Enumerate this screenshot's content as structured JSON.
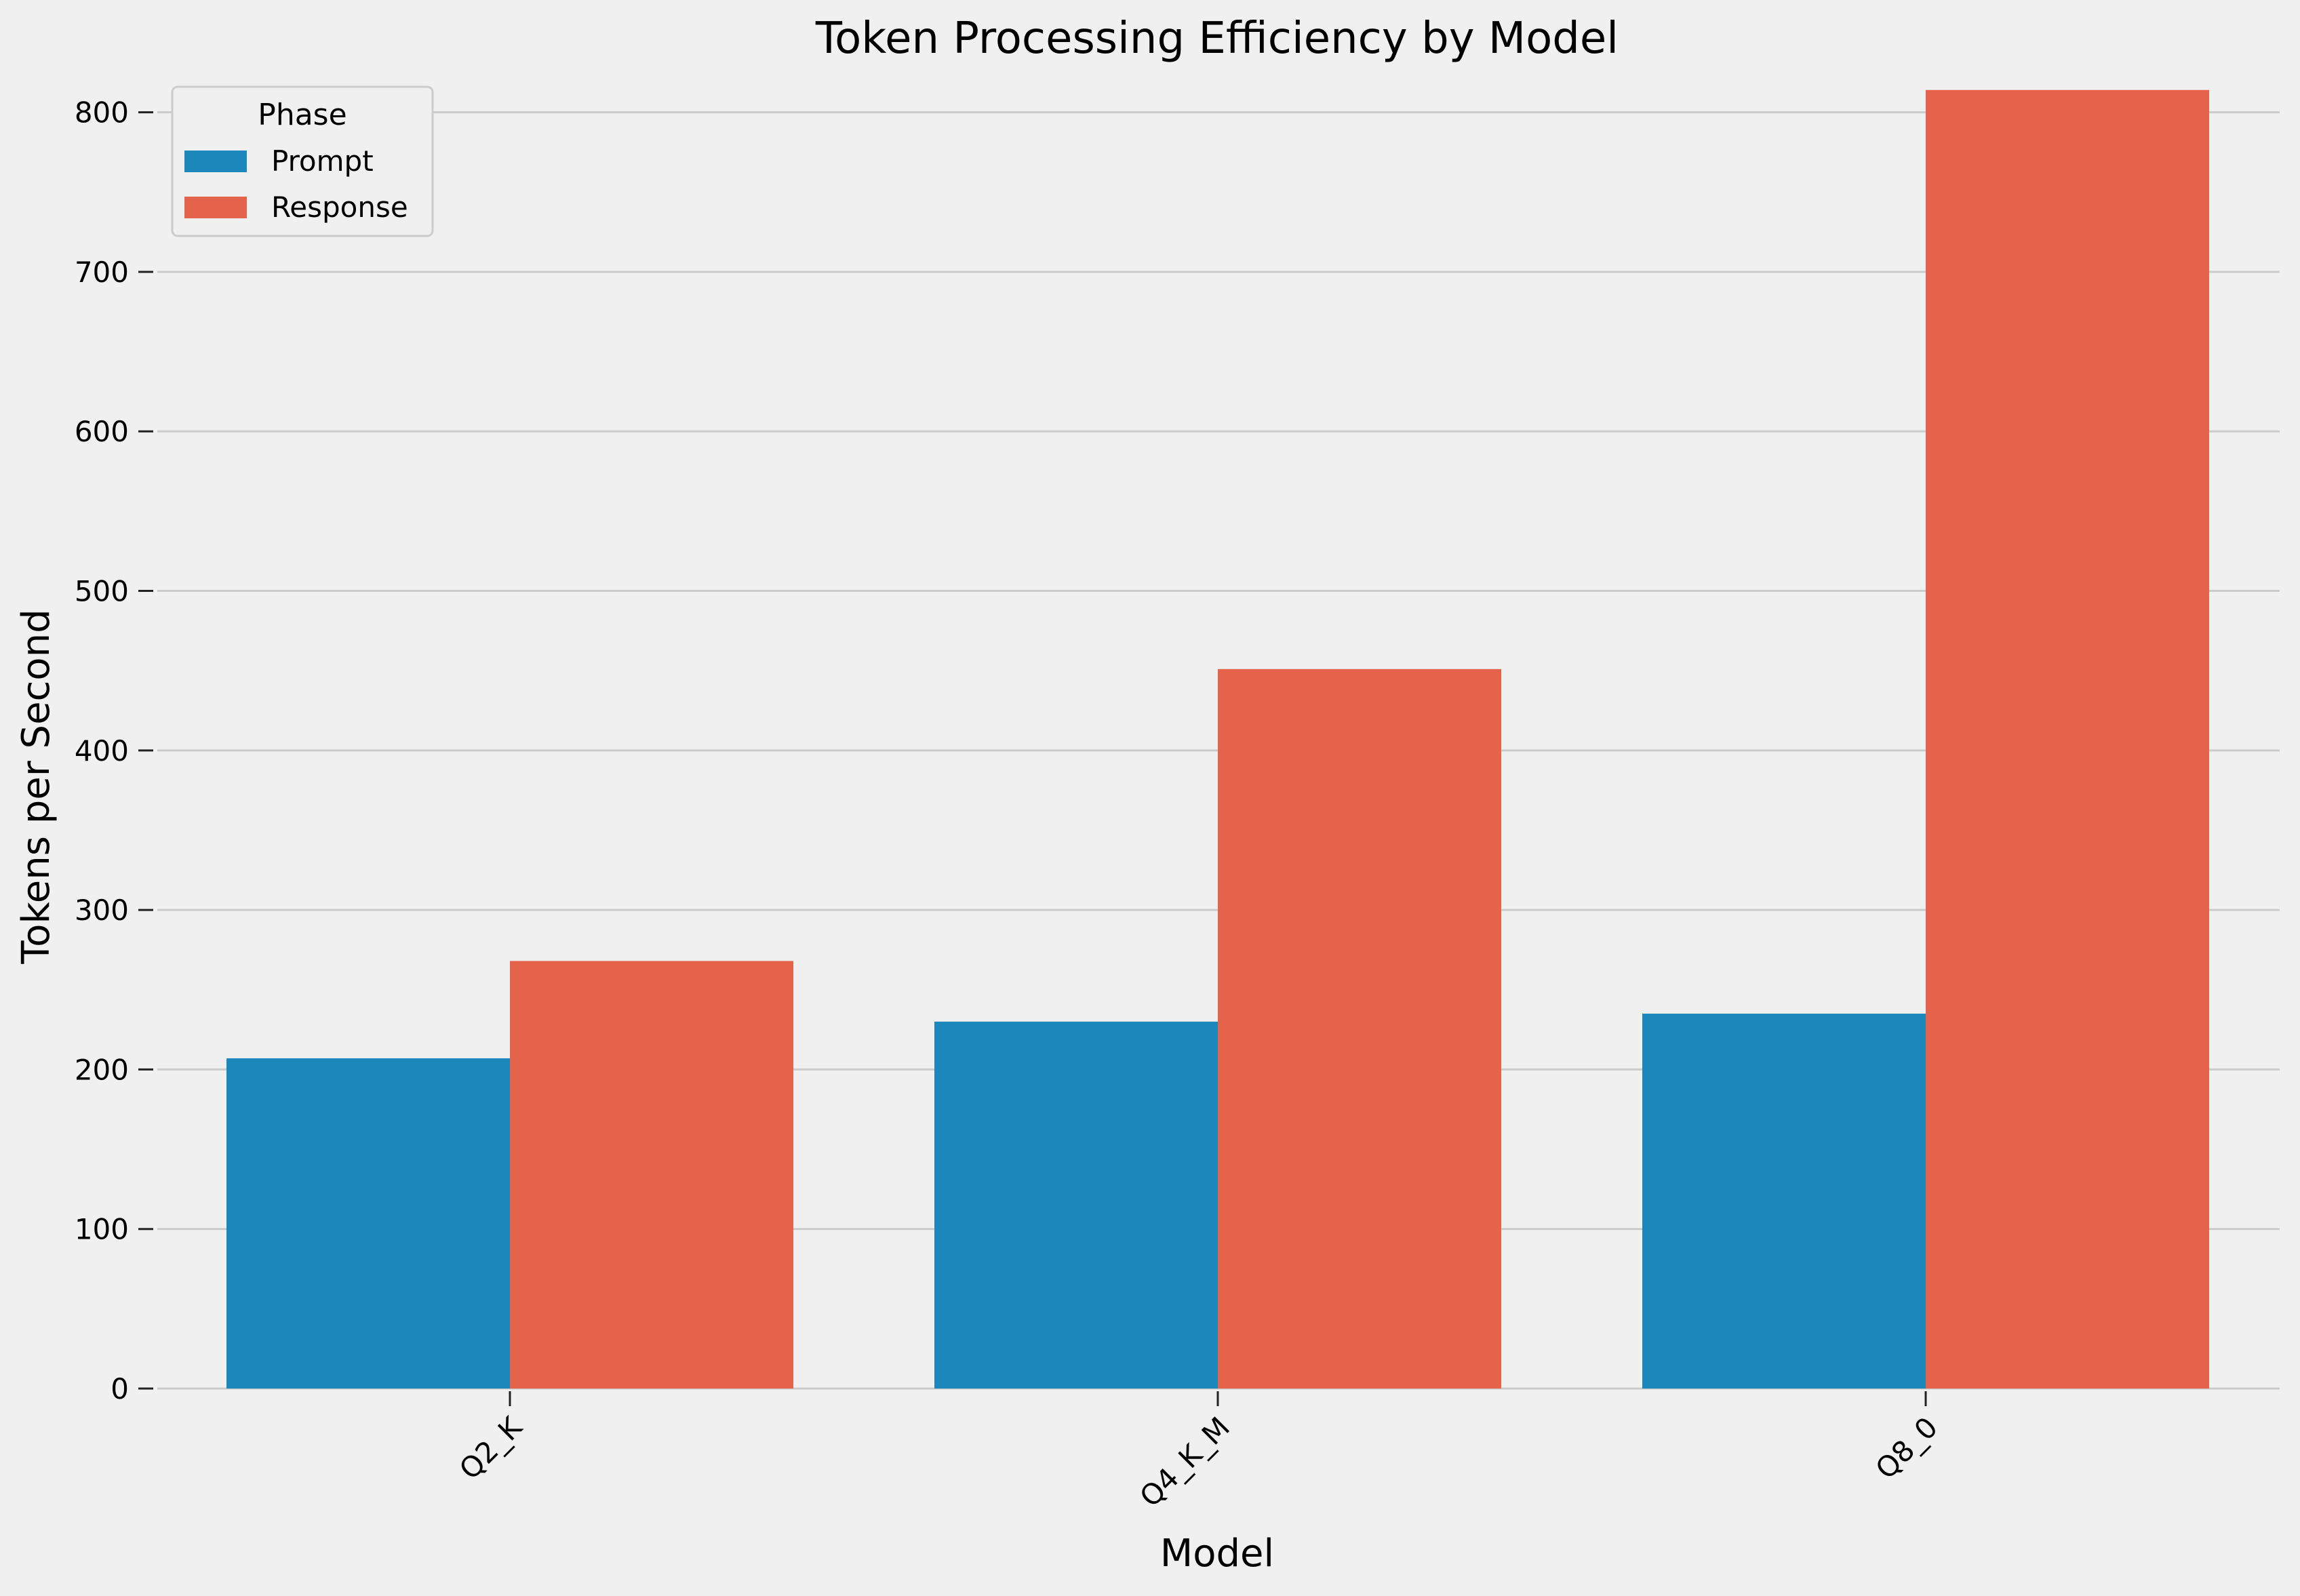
{
  "chart_data": {
    "type": "bar",
    "title": "Token Processing Efficiency by Model",
    "xlabel": "Model",
    "ylabel": "Tokens per Second",
    "categories": [
      "Q2_K",
      "Q4_K_M",
      "Q8_0"
    ],
    "series": [
      {
        "name": "Prompt",
        "values": [
          207,
          230,
          235
        ],
        "color": "#1b87bb"
      },
      {
        "name": "Response",
        "values": [
          268,
          451,
          814
        ],
        "color": "#e5624b"
      }
    ],
    "ylim": [
      0,
      850
    ],
    "yticks": [
      0,
      100,
      200,
      300,
      400,
      500,
      600,
      700,
      800
    ],
    "grid": "horizontal",
    "legend": {
      "title": "Phase",
      "position": "top-left"
    },
    "background": "#f0f0f0",
    "grid_color": "#cbcbcb"
  }
}
